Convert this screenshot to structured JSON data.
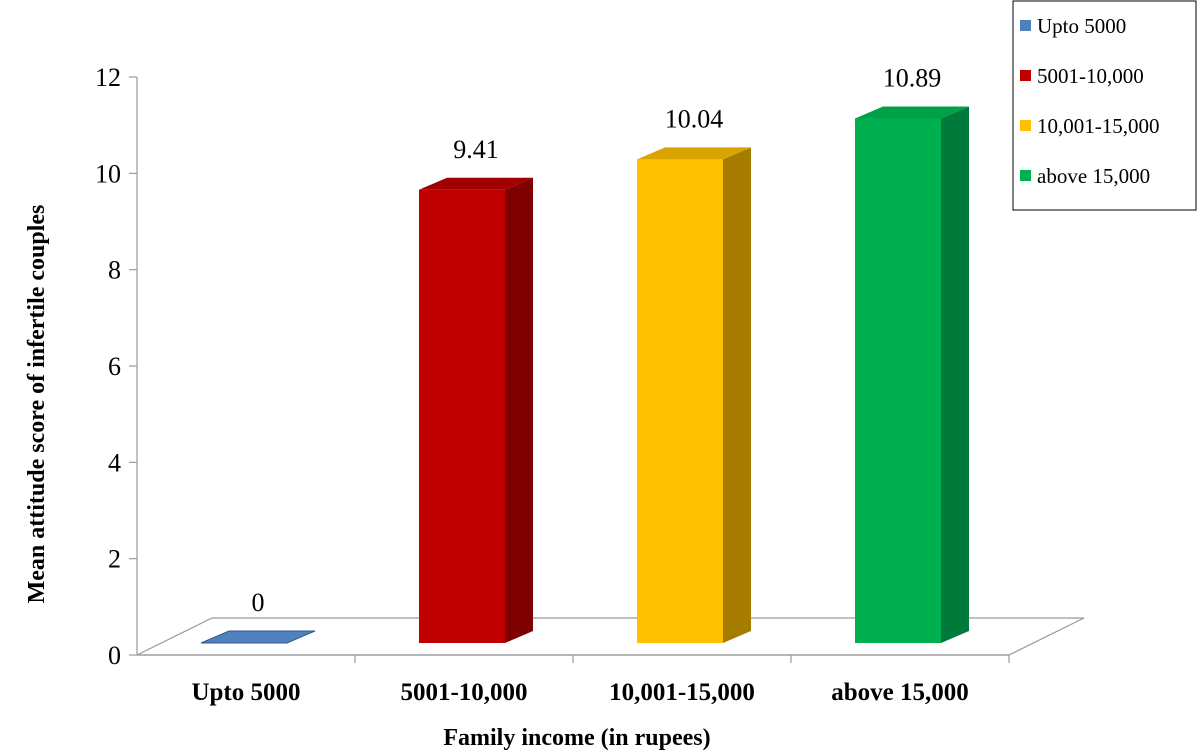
{
  "chart_data": {
    "type": "bar",
    "title": "",
    "xlabel": "Family income (in rupees)",
    "ylabel": "Mean attitude score of infertile couples",
    "categories": [
      "Upto 5000",
      "5001-10,000",
      "10,001-15,000",
      "above 15,000"
    ],
    "values": [
      0,
      9.41,
      10.04,
      10.89
    ],
    "data_labels": [
      "0",
      "9.41",
      "10.04",
      "10.89"
    ],
    "ylim": [
      0,
      12
    ],
    "yticks": [
      0,
      2,
      4,
      6,
      8,
      10,
      12
    ],
    "ytick_labels": [
      "0",
      "2",
      "4",
      "6",
      "8",
      "10",
      "12"
    ],
    "grid": false,
    "three_d": true,
    "legend": {
      "placement": "top-right",
      "entries": [
        "Upto 5000",
        "5001-10,000",
        "10,001-15,000",
        "above 15,000"
      ]
    },
    "colors": {
      "front": [
        "#4f81bd",
        "#c00000",
        "#ffc000",
        "#00b050"
      ],
      "side": [
        "#2e5a8a",
        "#7f0000",
        "#a67c00",
        "#007a3a"
      ],
      "top": [
        "#6f9bd0",
        "#a00000",
        "#d9a300",
        "#00a048"
      ]
    }
  }
}
